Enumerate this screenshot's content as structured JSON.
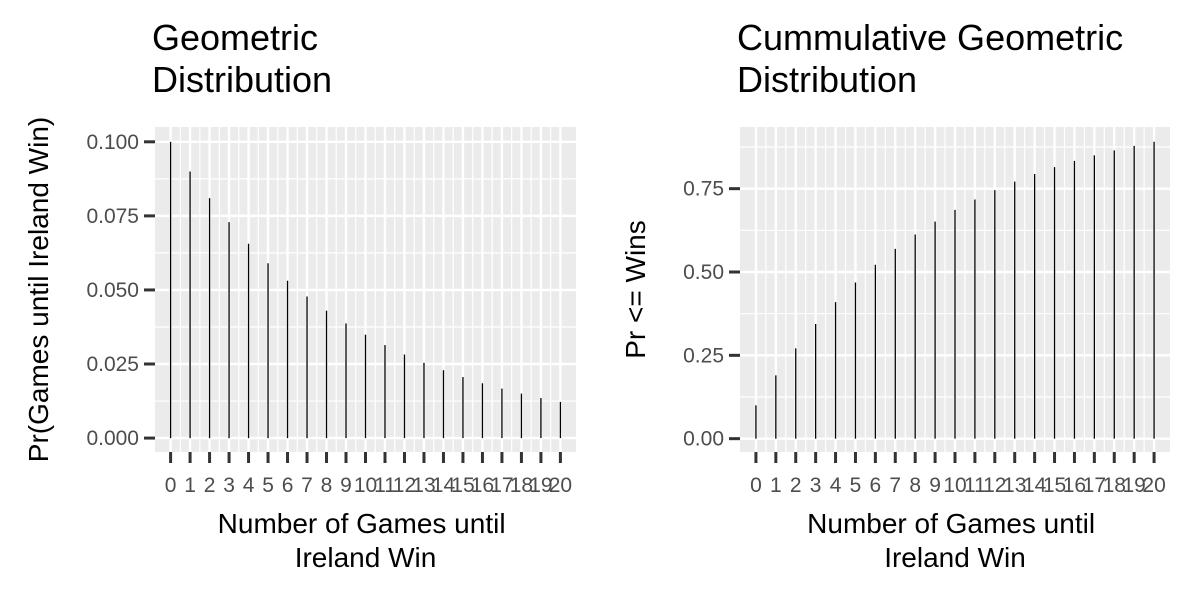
{
  "chart_data": [
    {
      "type": "bar",
      "title_lines": [
        "Geometric",
        " Distribution"
      ],
      "xlabel_lines": [
        "Number of Games until",
        "Ireland Win"
      ],
      "ylabel": "Pr(Games until Ireland Win)",
      "x": [
        0,
        1,
        2,
        3,
        4,
        5,
        6,
        7,
        8,
        9,
        10,
        11,
        12,
        13,
        14,
        15,
        16,
        17,
        18,
        19,
        20
      ],
      "x_tick_labels": [
        "0",
        "1",
        "2",
        "3",
        "4",
        "5",
        "6",
        "7",
        "8",
        "9",
        "10",
        "11",
        "12",
        "13",
        "14",
        "15",
        "16",
        "17",
        "18",
        "19",
        "20"
      ],
      "y": [
        0.1,
        0.09,
        0.081,
        0.0729,
        0.0656,
        0.059,
        0.0531,
        0.0478,
        0.043,
        0.0387,
        0.0349,
        0.0314,
        0.0282,
        0.0254,
        0.0229,
        0.0206,
        0.0185,
        0.0167,
        0.015,
        0.0135,
        0.0122
      ],
      "y_ticks": [
        0,
        0.025,
        0.05,
        0.075,
        0.1
      ],
      "y_tick_labels": [
        "0.000",
        "0.025",
        "0.050",
        "0.075",
        "0.100"
      ],
      "ylim": [
        -0.0047,
        0.105
      ],
      "xlim": [
        -0.8,
        20.8
      ],
      "bar_color": "#000000",
      "panel_color": "#ebebeb",
      "grid": true,
      "legend": "none"
    },
    {
      "type": "bar",
      "title_lines": [
        "Cummulative Geometric",
        " Distribution"
      ],
      "xlabel_lines": [
        "Number of Games until",
        "Ireland Win"
      ],
      "ylabel": "Pr <= Wins",
      "x": [
        0,
        1,
        2,
        3,
        4,
        5,
        6,
        7,
        8,
        9,
        10,
        11,
        12,
        13,
        14,
        15,
        16,
        17,
        18,
        19,
        20
      ],
      "x_tick_labels": [
        "0",
        "1",
        "2",
        "3",
        "4",
        "5",
        "6",
        "7",
        "8",
        "9",
        "10",
        "11",
        "12",
        "13",
        "14",
        "15",
        "16",
        "17",
        "18",
        "19",
        "20"
      ],
      "y": [
        0.1,
        0.19,
        0.271,
        0.3439,
        0.4095,
        0.4686,
        0.5217,
        0.5695,
        0.6126,
        0.6513,
        0.6862,
        0.7176,
        0.7458,
        0.7712,
        0.7941,
        0.8147,
        0.8332,
        0.8499,
        0.8649,
        0.8784,
        0.8906
      ],
      "y_ticks": [
        0,
        0.25,
        0.5,
        0.75
      ],
      "y_tick_labels": [
        "0.00",
        "0.25",
        "0.50",
        "0.75"
      ],
      "ylim": [
        -0.04,
        0.935
      ],
      "xlim": [
        -0.8,
        20.8
      ],
      "bar_color": "#000000",
      "panel_color": "#ebebeb",
      "grid": true,
      "legend": "none"
    }
  ]
}
